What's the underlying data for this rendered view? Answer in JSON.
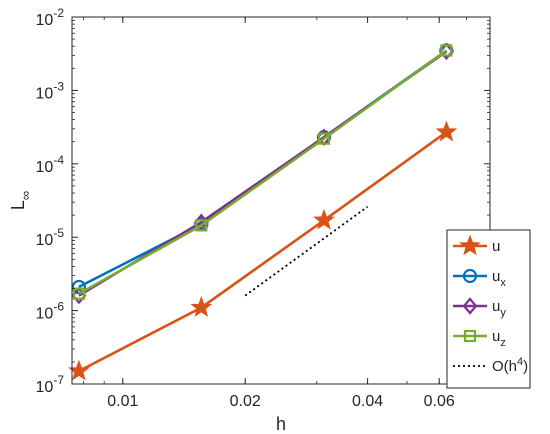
{
  "chart_data": {
    "type": "line",
    "title": "",
    "xlabel": "h",
    "ylabel": {
      "main": "L",
      "sub": "∞"
    },
    "xscale": "log",
    "yscale": "log",
    "xlim": [
      0.0075,
      0.08
    ],
    "ylim": [
      1e-07,
      0.01
    ],
    "grid": false,
    "legend_position": "bottom-right",
    "x_ticks": [
      {
        "value": 0.01,
        "label": "0.01"
      },
      {
        "value": 0.02,
        "label": "0.02"
      },
      {
        "value": 0.04,
        "label": "0.04"
      },
      {
        "value": 0.06,
        "label": "0.06"
      }
    ],
    "y_ticks": [
      {
        "value": 1e-07,
        "base": "10",
        "exp": "-7"
      },
      {
        "value": 1e-06,
        "base": "10",
        "exp": "-6"
      },
      {
        "value": 1e-05,
        "base": "10",
        "exp": "-5"
      },
      {
        "value": 0.0001,
        "base": "10",
        "exp": "-4"
      },
      {
        "value": 0.001,
        "base": "10",
        "exp": "-3"
      },
      {
        "value": 0.01,
        "base": "10",
        "exp": "-2"
      }
    ],
    "series": [
      {
        "label": "u",
        "sub": "",
        "color": "#D95319",
        "marker": "star",
        "x": [
          0.0078,
          0.0156,
          0.03125,
          0.0625
        ],
        "y": [
          1.5e-07,
          1.1e-06,
          1.7e-05,
          0.00027
        ]
      },
      {
        "label": "u",
        "sub": "x",
        "color": "#0072BD",
        "marker": "circle",
        "x": [
          0.0078,
          0.0156,
          0.03125,
          0.0625
        ],
        "y": [
          2.1e-06,
          1.5e-05,
          0.00023,
          0.0035
        ]
      },
      {
        "label": "u",
        "sub": "y",
        "color": "#7E2F8E",
        "marker": "diamond",
        "x": [
          0.0078,
          0.0156,
          0.03125,
          0.0625
        ],
        "y": [
          1.6e-06,
          1.6e-05,
          0.00023,
          0.0034
        ]
      },
      {
        "label": "u",
        "sub": "z",
        "color": "#77AC30",
        "marker": "square",
        "x": [
          0.0078,
          0.0156,
          0.03125,
          0.0625
        ],
        "y": [
          1.7e-06,
          1.45e-05,
          0.00022,
          0.0035
        ]
      },
      {
        "label": "O(h",
        "sup": "4",
        "tail": ")",
        "color": "#000000",
        "marker": "none",
        "dotted": true,
        "x": [
          0.02,
          0.04
        ],
        "y": [
          1.6e-06,
          2.6e-05
        ]
      }
    ]
  }
}
